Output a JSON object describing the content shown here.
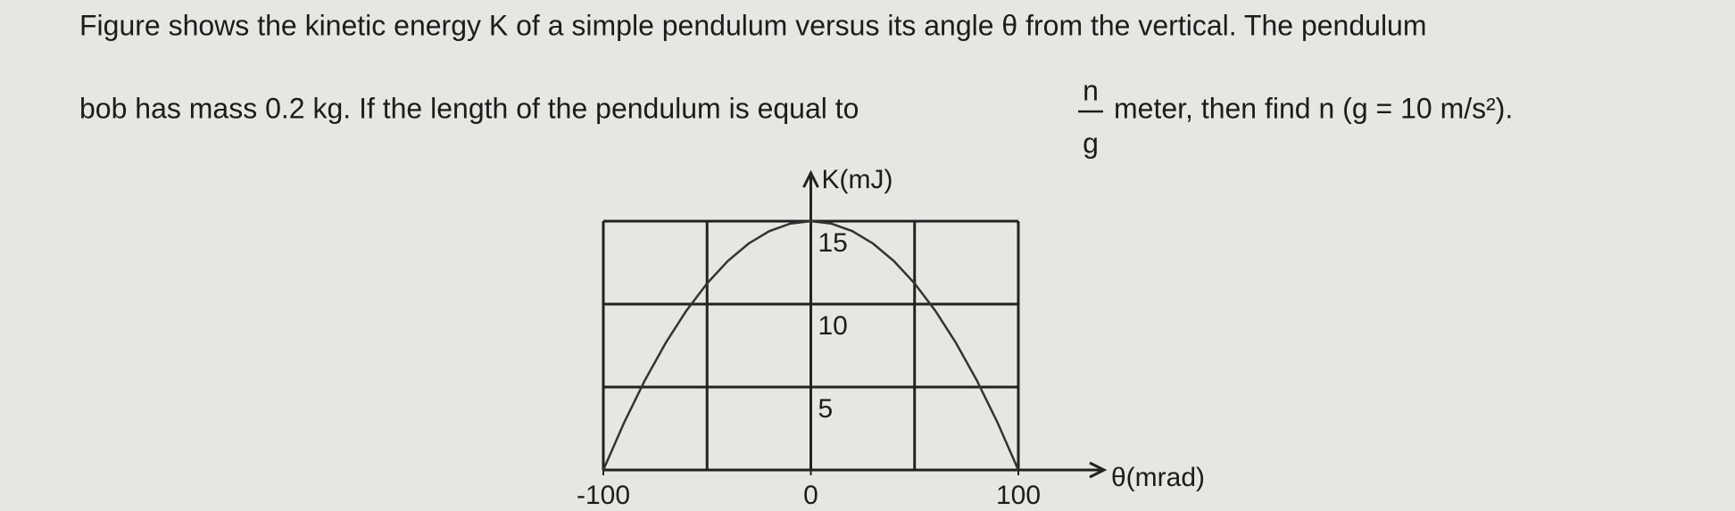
{
  "question": {
    "line1": "Figure shows the kinetic energy K of a simple pendulum versus its angle θ from the vertical. The pendulum",
    "line2_start": "bob has mass 0.2 kg. If the length of the pendulum is equal to",
    "numerator": "n",
    "denominator": "g",
    "line2_end": "meter, then find n (g = 10 m/s²)."
  },
  "chart_data": {
    "type": "line",
    "ylabel": "K(mJ)",
    "xlabel": "θ(mrad)",
    "x": [
      -100,
      -90,
      -80,
      -70,
      -60,
      -50,
      -40,
      -30,
      -20,
      -10,
      0,
      10,
      20,
      30,
      40,
      50,
      60,
      70,
      80,
      90,
      100
    ],
    "values": [
      0,
      2.85,
      5.4,
      7.65,
      9.6,
      11.25,
      12.6,
      13.65,
      14.4,
      14.85,
      15,
      14.85,
      14.4,
      13.65,
      12.6,
      11.25,
      9.6,
      7.65,
      5.4,
      2.85,
      0
    ],
    "color": "#333333",
    "xlim": [
      -100,
      100
    ],
    "ylim": [
      0,
      15
    ],
    "xticks": [
      -100,
      0,
      100
    ],
    "yticks": [
      5,
      10,
      15
    ],
    "xgrid": [
      -100,
      -50,
      0,
      50,
      100
    ],
    "grid": true
  }
}
